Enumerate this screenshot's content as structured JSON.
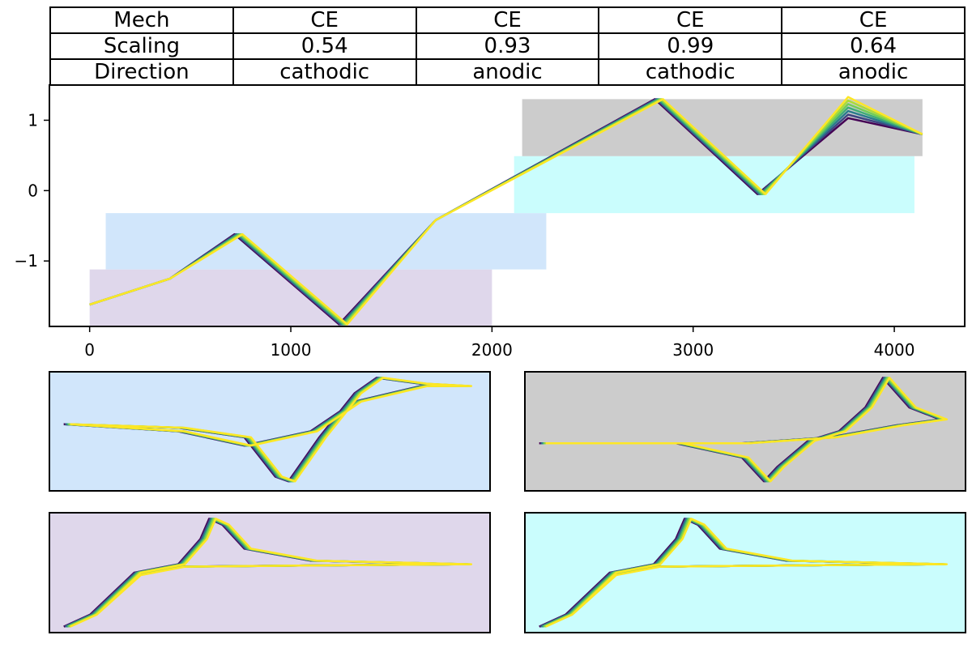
{
  "table": {
    "rows": [
      [
        "Mech",
        "CE",
        "CE",
        "CE",
        "CE"
      ],
      [
        "Scaling",
        "0.54",
        "0.93",
        "0.99",
        "0.64"
      ],
      [
        "Direction",
        "cathodic",
        "anodic",
        "cathodic",
        "anodic"
      ]
    ]
  },
  "chart_data": [
    {
      "type": "line",
      "title": "",
      "xlabel": "",
      "ylabel": "",
      "xlim": [
        -200,
        4350
      ],
      "ylim": [
        -1.93,
        1.5
      ],
      "x_ticks": [
        0,
        1000,
        2000,
        3000,
        4000
      ],
      "y_ticks": [
        -1,
        0,
        1
      ],
      "grid": false,
      "legend": "none",
      "colormap": [
        "#440154",
        "#3b528b",
        "#21918c",
        "#5ec962",
        "#9ad93c",
        "#fde725"
      ],
      "series_count": 7,
      "regions": [
        {
          "color": "#dfd7eb",
          "x": [
            0,
            2000
          ],
          "y": [
            -1.93,
            -1.12
          ]
        },
        {
          "color": "#d1e6fb",
          "x": [
            80,
            2270
          ],
          "y": [
            -1.12,
            -0.32
          ]
        },
        {
          "color": "#cafdfd",
          "x": [
            2110,
            4100
          ],
          "y": [
            -0.32,
            0.49
          ]
        },
        {
          "color": "#cccccc",
          "x": [
            2150,
            4140
          ],
          "y": [
            0.49,
            1.3
          ]
        }
      ],
      "key_points": [
        {
          "x": 0,
          "y": -1.62
        },
        {
          "x": 400,
          "y": -1.25
        },
        {
          "x": 740,
          "y": -0.62
        },
        {
          "x": 1260,
          "y": -1.9
        },
        {
          "x": 1720,
          "y": -0.42
        },
        {
          "x": 2830,
          "y": 1.3
        },
        {
          "x": 3340,
          "y": -0.05
        },
        {
          "x": 3770,
          "y": 1.18
        },
        {
          "x": 4140,
          "y": 0.8
        }
      ]
    },
    {
      "type": "line",
      "panel": "blue",
      "color": "#d1e6fb"
    },
    {
      "type": "line",
      "panel": "gray",
      "color": "#cccccc"
    },
    {
      "type": "line",
      "panel": "purple",
      "color": "#dfd7eb"
    },
    {
      "type": "line",
      "panel": "cyan",
      "color": "#cafdfd"
    }
  ]
}
